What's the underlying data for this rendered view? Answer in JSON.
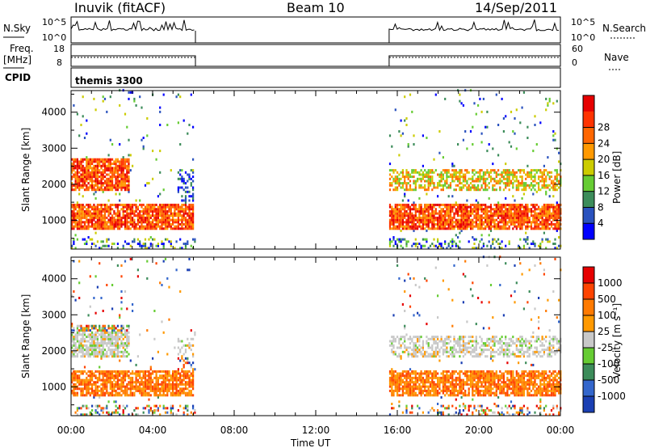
{
  "header": {
    "station": "Inuvik (fitACF)",
    "beam": "Beam 10",
    "date": "14/Sep/2011"
  },
  "panels": {
    "nsky_label": "N.Sky",
    "nsearch_label": "N.Search",
    "nsky_ticks": [
      "10^5",
      "10^0"
    ],
    "freq_label_top": "Freq.",
    "freq_label_bottom": "[MHz]",
    "freq_ticks": [
      "18",
      "8"
    ],
    "nave_label": "Nave",
    "nave_ticks": [
      "60",
      "0"
    ],
    "cpid_label": "CPID",
    "cpid_text": "themis 3300"
  },
  "colors": {
    "power_scale": [
      "#0000ff",
      "#2a52be",
      "#3c8c5a",
      "#66cc33",
      "#cccc00",
      "#ff9900",
      "#ff6600",
      "#ff3300",
      "#e60000"
    ],
    "velocity_scale": [
      "#1a3fb3",
      "#3366cc",
      "#3c8c5a",
      "#66cc33",
      "#c8c8c8",
      "#ff9900",
      "#ff7a00",
      "#ff4400",
      "#e60000"
    ]
  },
  "chart_data": [
    {
      "type": "heatmap",
      "panel": "power",
      "xlabel": "Time UT",
      "ylabel": "Slant Range [km]",
      "x_ticks": [
        "00:00",
        "04:00",
        "08:00",
        "12:00",
        "16:00",
        "20:00",
        "00:00"
      ],
      "y_ticks": [
        1000,
        2000,
        3000,
        4000
      ],
      "ylim": [
        200,
        4600
      ],
      "xlim_hours": [
        0,
        24
      ],
      "colorbar_label": "Power [dB]",
      "colorbar_ticks": [
        4,
        8,
        12,
        16,
        20,
        24,
        28
      ],
      "data_intervals_hours": [
        [
          0,
          6.1
        ],
        [
          15.6,
          24
        ]
      ],
      "bands": [
        {
          "t0": 0.0,
          "t1": 6.0,
          "r0": 700,
          "r1": 1400,
          "level": "high"
        },
        {
          "t0": 0.0,
          "t1": 2.8,
          "r0": 1800,
          "r1": 2700,
          "level": "high"
        },
        {
          "t0": 5.2,
          "t1": 6.0,
          "r0": 1400,
          "r1": 2300,
          "level": "low"
        },
        {
          "t0": 15.6,
          "t1": 24.0,
          "r0": 700,
          "r1": 1400,
          "level": "high"
        },
        {
          "t0": 15.6,
          "t1": 24.0,
          "r0": 1800,
          "r1": 2400,
          "level": "medium"
        }
      ]
    },
    {
      "type": "heatmap",
      "panel": "velocity",
      "xlabel": "Time UT",
      "ylabel": "Slant Range [km]",
      "x_ticks": [
        "00:00",
        "04:00",
        "08:00",
        "12:00",
        "16:00",
        "20:00",
        "00:00"
      ],
      "y_ticks": [
        1000,
        2000,
        3000,
        4000
      ],
      "ylim": [
        200,
        4600
      ],
      "xlim_hours": [
        0,
        24
      ],
      "colorbar_label": "Velocity [m s⁻¹]",
      "colorbar_ticks": [
        1000,
        500,
        100,
        25,
        -25,
        -100,
        -500,
        -1000
      ],
      "data_intervals_hours": [
        [
          0,
          6.1
        ],
        [
          15.6,
          24
        ]
      ]
    }
  ]
}
